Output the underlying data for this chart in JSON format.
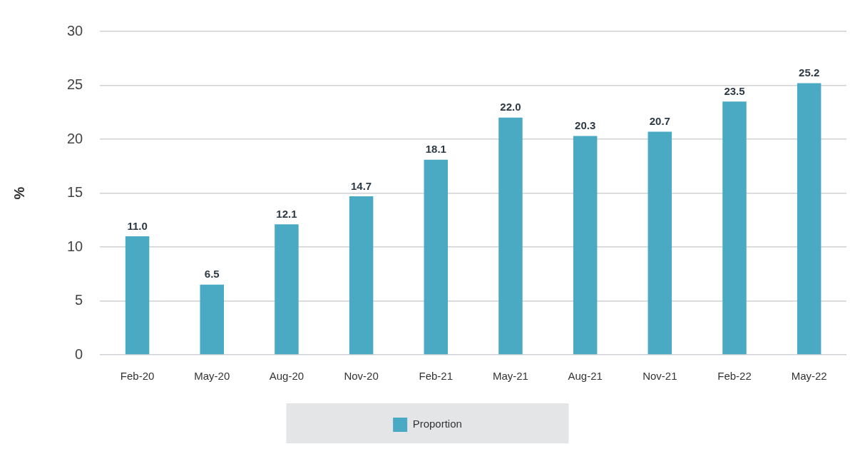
{
  "chart_data": {
    "type": "bar",
    "ylabel": "%",
    "categories": [
      "Feb-20",
      "May-20",
      "Aug-20",
      "Nov-20",
      "Feb-21",
      "May-21",
      "Aug-21",
      "Nov-21",
      "Feb-22",
      "May-22"
    ],
    "series": [
      {
        "name": "Proportion",
        "color": "#4aaac4",
        "values": [
          11.0,
          6.5,
          12.1,
          14.7,
          18.1,
          22.0,
          20.3,
          20.7,
          23.5,
          25.2
        ],
        "value_labels": [
          "11.0",
          "6.5",
          "12.1",
          "14.7",
          "18.1",
          "22.0",
          "20.3",
          "20.7",
          "23.5",
          "25.2"
        ]
      }
    ],
    "ylim": [
      0,
      30
    ],
    "yticks": [
      0,
      5,
      10,
      15,
      20,
      25,
      30
    ],
    "grid": "y",
    "legend": "bottom"
  }
}
